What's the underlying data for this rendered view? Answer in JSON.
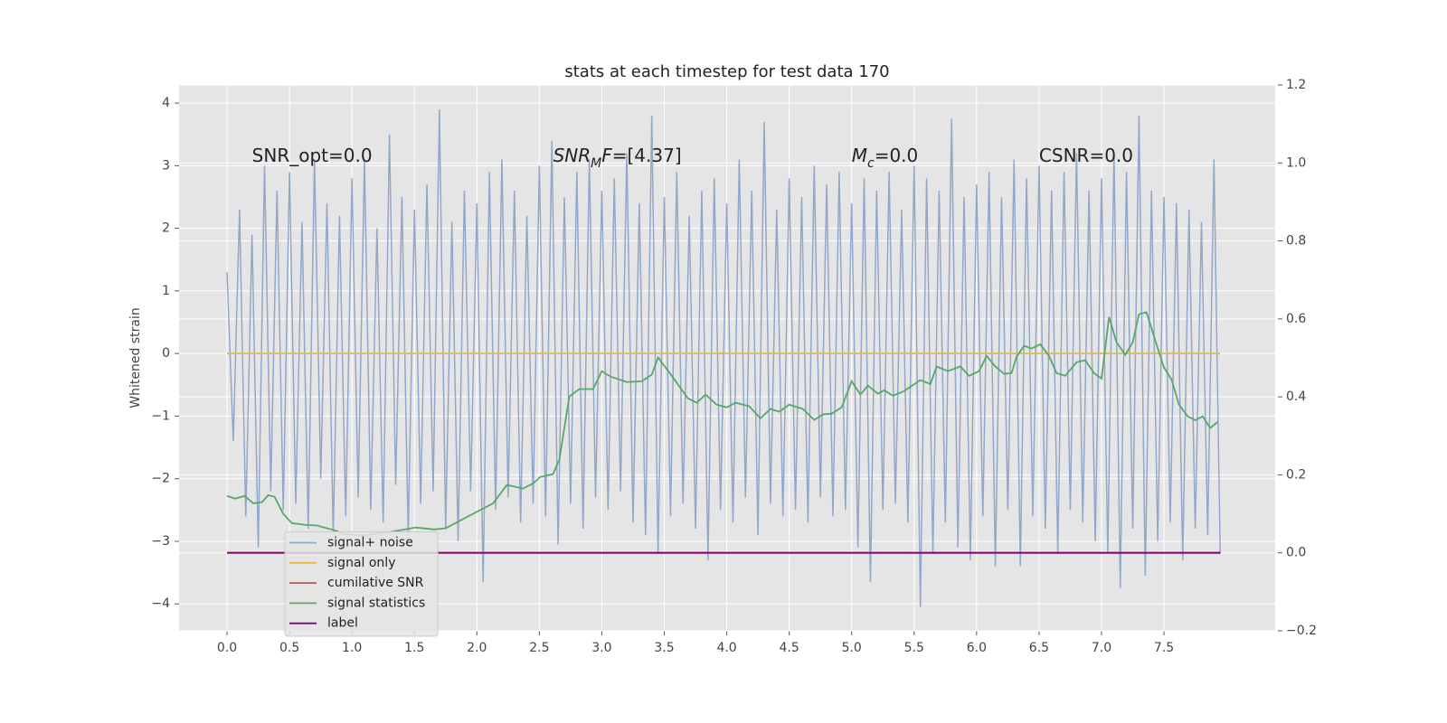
{
  "chart_data": {
    "type": "line",
    "title": "stats at each timestep for test data 170",
    "ylabel": "Whitened strain",
    "xlim": [
      -0.384,
      8.39
    ],
    "ylim": [
      -4.43,
      4.29
    ],
    "y2lim": [
      -0.2,
      1.2
    ],
    "xticks": [
      {
        "value": 0,
        "label": "0.0"
      },
      0.5,
      {
        "value": 1,
        "label": "1.0"
      },
      1.5,
      {
        "value": 2,
        "label": "2.0"
      },
      2.5,
      {
        "value": 3,
        "label": "3.0"
      },
      3.5,
      {
        "value": 4,
        "label": "4.0"
      },
      4.5,
      {
        "value": 5,
        "label": "5.0"
      },
      5.5,
      {
        "value": 6,
        "label": "6.0"
      },
      6.5,
      {
        "value": 7,
        "label": "7.0"
      },
      7.5
    ],
    "yticks": [
      {
        "value": -4,
        "label": "−4"
      },
      {
        "value": -3,
        "label": "−3"
      },
      {
        "value": -2,
        "label": "−2"
      },
      {
        "value": -1,
        "label": "−1"
      },
      0,
      1,
      2,
      3,
      4
    ],
    "y2ticks": [
      {
        "value": -0.2,
        "label": "−0.2"
      },
      {
        "value": 0,
        "label": "0.0"
      },
      0.2,
      0.4,
      0.6,
      0.8,
      {
        "value": 1,
        "label": "1.0"
      },
      1.2
    ],
    "grid": true,
    "legend": "lower left",
    "annotations": [
      {
        "x": 0.2,
        "y": 3.15,
        "parts": [
          {
            "text": "SNR_opt=0.0"
          }
        ]
      },
      {
        "x": 2.61,
        "y": 3.15,
        "parts": [
          {
            "text": "SNR",
            "style": "italic"
          },
          {
            "text": "M",
            "style": "italic-sub"
          },
          {
            "text": "F",
            "style": "italic"
          },
          {
            "text": "=[4.37]"
          }
        ]
      },
      {
        "x": 5.0,
        "y": 3.15,
        "parts": [
          {
            "text": "M",
            "style": "italic"
          },
          {
            "text": "c",
            "style": "italic-sub"
          },
          {
            "text": "=0.0"
          }
        ]
      },
      {
        "x": 6.5,
        "y": 3.15,
        "parts": [
          {
            "text": "CSNR=0.0"
          }
        ]
      }
    ],
    "series": [
      {
        "name": "signal+ noise",
        "color": "#93a7cb",
        "axis": "y",
        "x": [
          0,
          0.05,
          0.1,
          0.15,
          0.2,
          0.25,
          0.3,
          0.35,
          0.4,
          0.45,
          0.5,
          0.55,
          0.6,
          0.65,
          0.7,
          0.75,
          0.8,
          0.85,
          0.9,
          0.95,
          1,
          1.05,
          1.1,
          1.15,
          1.2,
          1.25,
          1.3,
          1.35,
          1.4,
          1.45,
          1.5,
          1.55,
          1.6,
          1.65,
          1.7,
          1.75,
          1.8,
          1.85,
          1.9,
          1.95,
          2,
          2.05,
          2.1,
          2.15,
          2.2,
          2.25,
          2.3,
          2.35,
          2.4,
          2.45,
          2.5,
          2.55,
          2.6,
          2.65,
          2.7,
          2.75,
          2.8,
          2.85,
          2.9,
          2.95,
          3,
          3.05,
          3.1,
          3.15,
          3.2,
          3.25,
          3.3,
          3.35,
          3.4,
          3.45,
          3.5,
          3.55,
          3.6,
          3.65,
          3.7,
          3.75,
          3.8,
          3.85,
          3.9,
          3.95,
          4,
          4.05,
          4.1,
          4.15,
          4.2,
          4.25,
          4.3,
          4.35,
          4.4,
          4.45,
          4.5,
          4.55,
          4.6,
          4.65,
          4.7,
          4.75,
          4.8,
          4.85,
          4.9,
          4.95,
          5,
          5.05,
          5.1,
          5.15,
          5.2,
          5.25,
          5.3,
          5.35,
          5.4,
          5.45,
          5.5,
          5.55,
          5.6,
          5.65,
          5.7,
          5.75,
          5.8,
          5.85,
          5.9,
          5.95,
          6,
          6.05,
          6.1,
          6.15,
          6.2,
          6.25,
          6.3,
          6.35,
          6.4,
          6.45,
          6.5,
          6.55,
          6.6,
          6.65,
          6.7,
          6.75,
          6.8,
          6.85,
          6.9,
          6.95,
          7,
          7.05,
          7.1,
          7.15,
          7.2,
          7.25,
          7.3,
          7.35,
          7.4,
          7.45,
          7.5,
          7.55,
          7.6,
          7.65,
          7.7,
          7.75,
          7.8,
          7.85,
          7.9,
          7.95
        ],
        "values": [
          1.3,
          -1.4,
          2.3,
          -2.6,
          1.9,
          -3.1,
          3.0,
          -2.2,
          2.6,
          -2.5,
          2.9,
          -2.4,
          2.1,
          -2.8,
          3.1,
          -2.0,
          2.4,
          -2.9,
          2.2,
          -2.6,
          2.8,
          -2.3,
          3.1,
          -2.5,
          2.0,
          -2.7,
          3.5,
          -2.1,
          2.5,
          -2.9,
          2.3,
          -2.4,
          2.7,
          -2.2,
          3.9,
          -2.8,
          2.1,
          -3.0,
          2.6,
          -2.2,
          2.4,
          -3.65,
          2.9,
          -2.5,
          3.1,
          -2.3,
          2.6,
          -2.7,
          2.2,
          -2.4,
          3.0,
          -2.6,
          3.4,
          -3.05,
          2.5,
          -2.4,
          2.9,
          -2.8,
          3.1,
          -2.3,
          2.6,
          -2.5,
          2.8,
          -2.2,
          3.2,
          -2.7,
          2.4,
          -2.9,
          3.8,
          -3.2,
          2.5,
          -2.6,
          2.9,
          -2.4,
          2.2,
          -2.8,
          2.6,
          -3.3,
          2.8,
          -2.5,
          2.4,
          -2.7,
          3.1,
          -2.3,
          2.6,
          -2.9,
          3.7,
          -2.4,
          2.3,
          -2.6,
          2.8,
          -2.5,
          2.5,
          -2.7,
          3.0,
          -2.3,
          2.7,
          -2.6,
          2.9,
          -2.5,
          2.4,
          -3.1,
          2.8,
          -3.65,
          2.6,
          -2.5,
          2.9,
          -2.4,
          2.3,
          -2.7,
          3.0,
          -4.05,
          2.8,
          -3.2,
          2.6,
          -2.7,
          3.75,
          -3.1,
          2.5,
          -3.3,
          2.7,
          -2.6,
          2.9,
          -3.4,
          2.5,
          -2.5,
          3.1,
          -3.4,
          2.8,
          -2.6,
          3.0,
          -2.8,
          2.6,
          -3.2,
          2.9,
          -2.5,
          3.2,
          -2.7,
          2.6,
          -3.0,
          2.8,
          -3.2,
          3.2,
          -3.75,
          2.9,
          -2.8,
          3.8,
          -3.55,
          2.6,
          -3.0,
          2.5,
          -2.7,
          2.4,
          -3.3,
          2.3,
          -2.8,
          2.1,
          -2.9,
          3.1,
          -3.2
        ]
      },
      {
        "name": "signal only",
        "color": "#e8b84a",
        "axis": "y",
        "x": [
          0,
          7.95
        ],
        "values": [
          0,
          0
        ]
      },
      {
        "name": "cumilative SNR",
        "color": "#c44e52",
        "axis": "y2",
        "x": [
          0,
          7.95
        ],
        "values": [
          0,
          0
        ]
      },
      {
        "name": "signal statistics",
        "color": "#55a868",
        "axis": "y2",
        "x": [
          0,
          0.065,
          0.14,
          0.21,
          0.28,
          0.33,
          0.38,
          0.45,
          0.52,
          0.62,
          0.72,
          0.86,
          0.93,
          1.08,
          1.3,
          1.51,
          1.66,
          1.75,
          1.95,
          2.13,
          2.24,
          2.37,
          2.45,
          2.51,
          2.61,
          2.66,
          2.74,
          2.82,
          2.93,
          3.0,
          3.07,
          3.2,
          3.32,
          3.4,
          3.45,
          3.56,
          3.69,
          3.76,
          3.83,
          3.92,
          4.0,
          4.07,
          4.18,
          4.27,
          4.35,
          4.42,
          4.5,
          4.61,
          4.7,
          4.77,
          4.84,
          4.92,
          5.0,
          5.07,
          5.13,
          5.21,
          5.26,
          5.33,
          5.42,
          5.55,
          5.63,
          5.68,
          5.77,
          5.87,
          5.94,
          6.02,
          6.08,
          6.15,
          6.22,
          6.28,
          6.32,
          6.38,
          6.44,
          6.51,
          6.58,
          6.64,
          6.71,
          6.8,
          6.87,
          6.94,
          7.0,
          7.06,
          7.12,
          7.19,
          7.25,
          7.3,
          7.36,
          7.43,
          7.5,
          7.56,
          7.62,
          7.69,
          7.75,
          7.81,
          7.87,
          7.93
        ],
        "values": [
          0.146,
          0.139,
          0.146,
          0.127,
          0.13,
          0.148,
          0.144,
          0.1,
          0.076,
          0.072,
          0.07,
          0.058,
          0.049,
          0.044,
          0.053,
          0.065,
          0.06,
          0.063,
          0.097,
          0.127,
          0.174,
          0.165,
          0.178,
          0.195,
          0.202,
          0.239,
          0.401,
          0.42,
          0.42,
          0.466,
          0.452,
          0.438,
          0.44,
          0.457,
          0.501,
          0.454,
          0.396,
          0.385,
          0.406,
          0.38,
          0.373,
          0.385,
          0.376,
          0.345,
          0.369,
          0.362,
          0.38,
          0.369,
          0.341,
          0.355,
          0.357,
          0.373,
          0.44,
          0.406,
          0.429,
          0.408,
          0.417,
          0.403,
          0.415,
          0.443,
          0.433,
          0.478,
          0.466,
          0.478,
          0.454,
          0.466,
          0.505,
          0.478,
          0.459,
          0.461,
          0.503,
          0.531,
          0.524,
          0.535,
          0.505,
          0.461,
          0.454,
          0.489,
          0.494,
          0.461,
          0.447,
          0.605,
          0.54,
          0.508,
          0.54,
          0.612,
          0.617,
          0.545,
          0.475,
          0.445,
          0.38,
          0.35,
          0.34,
          0.35,
          0.32,
          0.336
        ]
      },
      {
        "name": "label",
        "color": "#800080",
        "axis": "y2",
        "x": [
          0,
          7.95
        ],
        "values": [
          0,
          0
        ]
      }
    ]
  }
}
